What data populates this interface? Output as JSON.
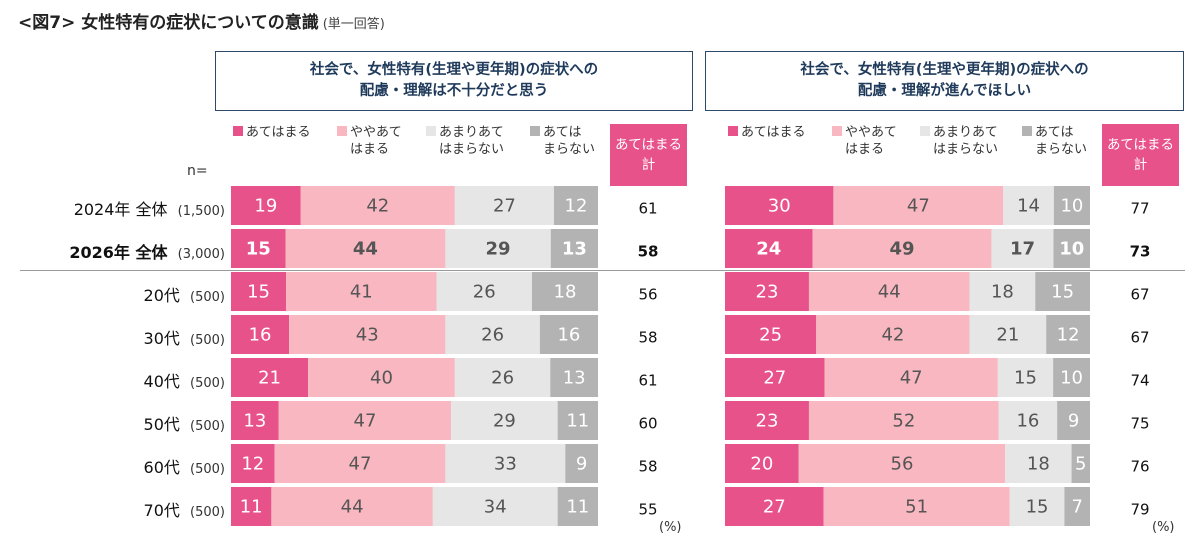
{
  "figure_title": "<図7> 女性特有の症状についての意識",
  "figure_note": "(単一回答)",
  "n_label": "n=",
  "percent_unit": "(%)",
  "chart_data": {
    "type": "bar",
    "stacked": true,
    "orientation": "horizontal",
    "legend_position": "top",
    "categories": [
      {
        "label": "2024年 全体",
        "n": "(1,500)",
        "bold": false
      },
      {
        "label": "2026年 全体",
        "n": "(3,000)",
        "bold": true
      },
      {
        "label": "20代",
        "n": "(500)",
        "bold": false
      },
      {
        "label": "30代",
        "n": "(500)",
        "bold": false
      },
      {
        "label": "40代",
        "n": "(500)",
        "bold": false
      },
      {
        "label": "50代",
        "n": "(500)",
        "bold": false
      },
      {
        "label": "60代",
        "n": "(500)",
        "bold": false
      },
      {
        "label": "70代",
        "n": "(500)",
        "bold": false
      }
    ],
    "series_names": [
      "あてはまる",
      "ややあてはまる",
      "あまりあてはまらない",
      "あてはまらない"
    ],
    "series_colors": [
      "#e8528a",
      "#f9b8c1",
      "#e6e6e6",
      "#b3b3b3"
    ],
    "total_label": "あてはまる計",
    "panels": [
      {
        "title": "社会で、女性特有(生理や更年期)の症状への配慮・理解は不十分だと思う",
        "title_lines": [
          "社会で、女性特有(生理や更年期)の症状への",
          "配慮・理解は不十分だと思う"
        ],
        "values": [
          [
            19,
            42,
            27,
            12
          ],
          [
            15,
            44,
            29,
            13
          ],
          [
            15,
            41,
            26,
            18
          ],
          [
            16,
            43,
            26,
            16
          ],
          [
            21,
            40,
            26,
            13
          ],
          [
            13,
            47,
            29,
            11
          ],
          [
            12,
            47,
            33,
            9
          ],
          [
            11,
            44,
            34,
            11
          ]
        ],
        "totals": [
          61,
          58,
          56,
          58,
          61,
          60,
          58,
          55
        ]
      },
      {
        "title": "社会で、女性特有(生理や更年期)の症状への配慮・理解が進んでほしい",
        "title_lines": [
          "社会で、女性特有(生理や更年期)の症状への",
          "配慮・理解が進んでほしい"
        ],
        "values": [
          [
            30,
            47,
            14,
            10
          ],
          [
            24,
            49,
            17,
            10
          ],
          [
            23,
            44,
            18,
            15
          ],
          [
            25,
            42,
            21,
            12
          ],
          [
            27,
            47,
            15,
            10
          ],
          [
            23,
            52,
            16,
            9
          ],
          [
            20,
            56,
            18,
            5
          ],
          [
            27,
            51,
            15,
            7
          ]
        ],
        "totals": [
          77,
          73,
          67,
          67,
          74,
          75,
          76,
          79
        ]
      }
    ]
  },
  "legend": {
    "items": [
      {
        "lines": [
          "あてはまる"
        ]
      },
      {
        "lines": [
          "ややあて",
          "はまる"
        ]
      },
      {
        "lines": [
          "あまりあて",
          "はまらない"
        ]
      },
      {
        "lines": [
          "あては",
          "まらない"
        ]
      }
    ],
    "total_lines": [
      "あてはまる",
      "計"
    ]
  }
}
